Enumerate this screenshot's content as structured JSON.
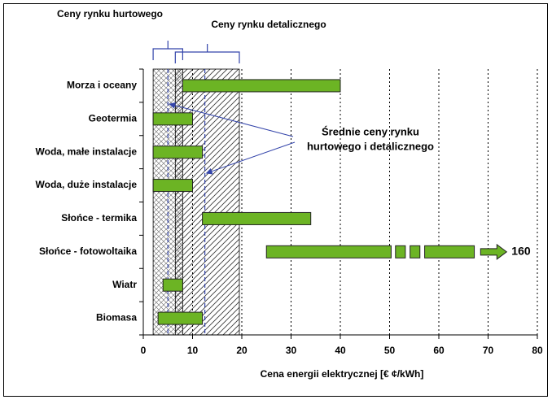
{
  "chart_data": {
    "type": "range-bar",
    "categories": [
      "Morza i oceany",
      "Geotermia",
      "Woda, małe instalacje",
      "Woda, duże instalacje",
      "Słońce - termika",
      "Słońce - fotowoltaika",
      "Wiatr",
      "Biomasa"
    ],
    "low": [
      8,
      2,
      2,
      2,
      12,
      25,
      4,
      3
    ],
    "high": [
      40,
      10,
      12,
      10,
      34,
      160,
      8,
      12
    ],
    "value_labels": [
      null,
      null,
      null,
      null,
      null,
      "160",
      null,
      null
    ],
    "color": "#6cb424",
    "xlim": [
      0,
      80
    ],
    "xticks": [
      0,
      10,
      20,
      30,
      40,
      50,
      60,
      70,
      80
    ],
    "grid": true,
    "x_label": "Cena energii elektrycznej [€ ¢/kWh]",
    "ranges": [
      {
        "name": "Ceny rynku hurtowego",
        "values": [
          2,
          8
        ]
      },
      {
        "name": "Ceny rynku detalicznego",
        "values": [
          6.5,
          19.5
        ]
      }
    ],
    "averages": [
      5,
      12.5
    ],
    "annotation": [
      "Średnie ceny rynku",
      "hurtowego i detalicznego"
    ]
  }
}
